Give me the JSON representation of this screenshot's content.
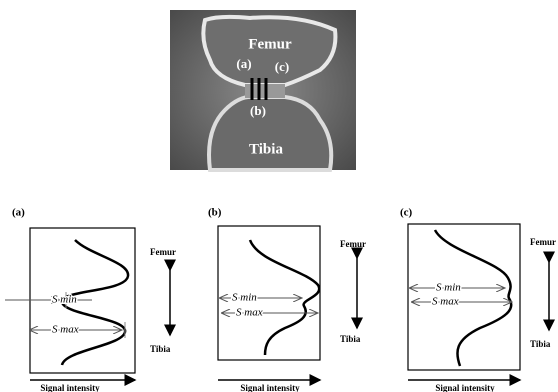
{
  "image": {
    "femur": "Femur",
    "tibia": "Tibia",
    "marks": [
      "(a)",
      "(c)",
      "(b)"
    ]
  },
  "panels": [
    {
      "label": "(a)",
      "top": "Femur",
      "bottom": "Tibia",
      "s_min": "S min",
      "s_max": "S max",
      "x_axis": "Signal intensity"
    },
    {
      "label": "(b)",
      "top": "Femur",
      "bottom": "Tibia",
      "s_min": "S min",
      "s_max": "S max",
      "x_axis": "Signal intensity"
    },
    {
      "label": "(c)",
      "top": "Femur",
      "bottom": "Tibia",
      "s_min": "S min",
      "s_max": "S max",
      "x_axis": "Signal intensity"
    }
  ]
}
